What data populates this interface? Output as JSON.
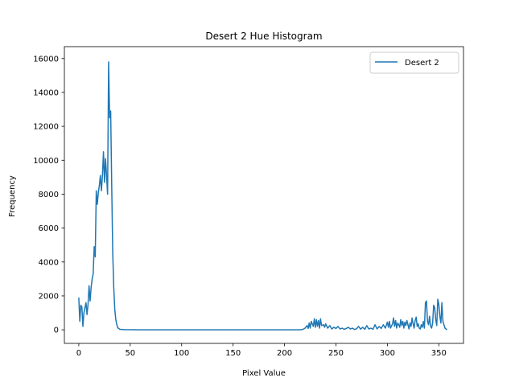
{
  "chart_data": {
    "type": "line",
    "title": "Desert 2 Hue Histogram",
    "xlabel": "Pixel Value",
    "ylabel": "Frequency",
    "xlim": [
      -14,
      374
    ],
    "ylim": [
      -800,
      16700
    ],
    "xticks": [
      0,
      50,
      100,
      150,
      200,
      250,
      300,
      350
    ],
    "yticks": [
      0,
      2000,
      4000,
      6000,
      8000,
      10000,
      12000,
      14000,
      16000
    ],
    "grid": false,
    "legend_position": "top-right",
    "color": "#1f77b4",
    "series": [
      {
        "name": "Desert 2",
        "points": [
          [
            0,
            1900
          ],
          [
            1,
            500
          ],
          [
            2,
            1450
          ],
          [
            3,
            1350
          ],
          [
            4,
            200
          ],
          [
            5,
            1000
          ],
          [
            6,
            1300
          ],
          [
            7,
            1600
          ],
          [
            8,
            900
          ],
          [
            9,
            1500
          ],
          [
            10,
            2600
          ],
          [
            11,
            1700
          ],
          [
            12,
            2500
          ],
          [
            13,
            3000
          ],
          [
            14,
            3300
          ],
          [
            15,
            4900
          ],
          [
            16,
            4300
          ],
          [
            17,
            8200
          ],
          [
            18,
            7400
          ],
          [
            19,
            8100
          ],
          [
            20,
            8500
          ],
          [
            21,
            9100
          ],
          [
            22,
            8200
          ],
          [
            23,
            9100
          ],
          [
            24,
            10500
          ],
          [
            25,
            8700
          ],
          [
            26,
            10100
          ],
          [
            27,
            9100
          ],
          [
            28,
            8000
          ],
          [
            29,
            15800
          ],
          [
            30,
            12500
          ],
          [
            31,
            12900
          ],
          [
            32,
            8600
          ],
          [
            33,
            4600
          ],
          [
            34,
            2500
          ],
          [
            35,
            1200
          ],
          [
            36,
            600
          ],
          [
            37,
            300
          ],
          [
            38,
            120
          ],
          [
            40,
            30
          ],
          [
            45,
            10
          ],
          [
            60,
            0
          ],
          [
            100,
            0
          ],
          [
            150,
            0
          ],
          [
            200,
            0
          ],
          [
            215,
            0
          ],
          [
            218,
            30
          ],
          [
            220,
            100
          ],
          [
            222,
            250
          ],
          [
            223,
            80
          ],
          [
            224,
            400
          ],
          [
            225,
            100
          ],
          [
            226,
            500
          ],
          [
            228,
            200
          ],
          [
            229,
            650
          ],
          [
            230,
            150
          ],
          [
            231,
            600
          ],
          [
            232,
            200
          ],
          [
            233,
            550
          ],
          [
            234,
            100
          ],
          [
            235,
            650
          ],
          [
            236,
            250
          ],
          [
            238,
            300
          ],
          [
            239,
            150
          ],
          [
            240,
            350
          ],
          [
            242,
            100
          ],
          [
            244,
            250
          ],
          [
            246,
            50
          ],
          [
            248,
            150
          ],
          [
            250,
            80
          ],
          [
            252,
            200
          ],
          [
            254,
            50
          ],
          [
            256,
            100
          ],
          [
            258,
            30
          ],
          [
            260,
            80
          ],
          [
            262,
            150
          ],
          [
            264,
            50
          ],
          [
            266,
            100
          ],
          [
            268,
            20
          ],
          [
            270,
            60
          ],
          [
            272,
            200
          ],
          [
            274,
            40
          ],
          [
            276,
            150
          ],
          [
            278,
            30
          ],
          [
            280,
            250
          ],
          [
            282,
            50
          ],
          [
            284,
            100
          ],
          [
            286,
            30
          ],
          [
            288,
            300
          ],
          [
            290,
            50
          ],
          [
            292,
            200
          ],
          [
            294,
            80
          ],
          [
            296,
            300
          ],
          [
            298,
            100
          ],
          [
            300,
            450
          ],
          [
            301,
            150
          ],
          [
            302,
            500
          ],
          [
            303,
            100
          ],
          [
            305,
            350
          ],
          [
            306,
            700
          ],
          [
            307,
            200
          ],
          [
            308,
            550
          ],
          [
            309,
            100
          ],
          [
            310,
            400
          ],
          [
            311,
            300
          ],
          [
            312,
            150
          ],
          [
            313,
            600
          ],
          [
            314,
            250
          ],
          [
            315,
            500
          ],
          [
            316,
            100
          ],
          [
            317,
            450
          ],
          [
            318,
            250
          ],
          [
            319,
            550
          ],
          [
            320,
            300
          ],
          [
            321,
            50
          ],
          [
            322,
            400
          ],
          [
            323,
            200
          ],
          [
            324,
            700
          ],
          [
            325,
            350
          ],
          [
            326,
            100
          ],
          [
            327,
            550
          ],
          [
            328,
            750
          ],
          [
            329,
            200
          ],
          [
            330,
            350
          ],
          [
            331,
            100
          ],
          [
            332,
            50
          ],
          [
            333,
            300
          ],
          [
            334,
            150
          ],
          [
            335,
            500
          ],
          [
            336,
            100
          ],
          [
            337,
            1600
          ],
          [
            338,
            1700
          ],
          [
            339,
            500
          ],
          [
            340,
            300
          ],
          [
            341,
            800
          ],
          [
            342,
            200
          ],
          [
            343,
            100
          ],
          [
            344,
            400
          ],
          [
            345,
            1450
          ],
          [
            346,
            1300
          ],
          [
            347,
            600
          ],
          [
            348,
            250
          ],
          [
            349,
            1800
          ],
          [
            350,
            1500
          ],
          [
            351,
            800
          ],
          [
            352,
            400
          ],
          [
            353,
            1600
          ],
          [
            354,
            500
          ],
          [
            355,
            300
          ],
          [
            356,
            100
          ],
          [
            358,
            0
          ]
        ]
      }
    ]
  }
}
